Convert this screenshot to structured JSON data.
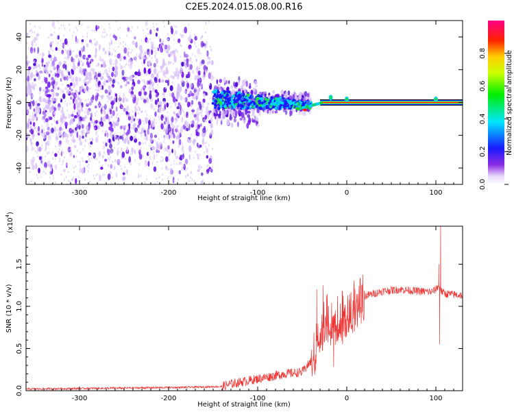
{
  "figure_title": "C2E5.2024.015.08.00.R16",
  "colors": {
    "purple_hi": "#6a0fe6",
    "purple_lo": "#d9c2f7",
    "snr_line": "#ee3333",
    "axis": "#000000"
  },
  "chart_data": [
    {
      "type": "heatmap",
      "title": "",
      "xlabel": "Height of straight line (km)",
      "ylabel": "Frequency (Hz)",
      "xlim": [
        -360,
        130
      ],
      "ylim": [
        -50,
        50
      ],
      "xticks": [
        -300,
        -200,
        -100,
        0,
        100
      ],
      "yticks": [
        -40,
        -20,
        0,
        20,
        40
      ],
      "colorbar": {
        "label": "Normalized spectral amplitude",
        "range": [
          0,
          1
        ],
        "ticks": [
          "0.0",
          "0.2",
          "0.4",
          "0.6",
          "0.8"
        ],
        "tick_values": [
          0,
          0.2,
          0.4,
          0.6,
          0.8
        ],
        "colormap": "rainbow (white-violet-blue-cyan-green-yellow-red-magenta)"
      },
      "bands": [
        {
          "x_start": -360,
          "x_end": -150,
          "freq_spread": 50,
          "amplitude": 0.12
        },
        {
          "x_start": -150,
          "x_end": -100,
          "freq_spread": 15,
          "amplitude": 0.2
        },
        {
          "x_start": -100,
          "x_end": -40,
          "freq_spread": 6,
          "amplitude": 0.35
        },
        {
          "x_start": -40,
          "x_end": 130,
          "freq_spread": 1,
          "amplitude": 0.95
        }
      ]
    },
    {
      "type": "line",
      "title": "",
      "xlabel": "Height of straight line (km)",
      "ylabel": "SNR (10 * v/v)",
      "y_multiplier": "(x10",
      "y_multiplier_exp": "4",
      "y_multiplier_close": ")",
      "xlim": [
        -360,
        130
      ],
      "ylim": [
        0,
        1.95
      ],
      "xticks": [
        -300,
        -200,
        -100,
        0,
        100
      ],
      "yticks": [
        "0.0",
        "0.5",
        "1.0",
        "1.5"
      ],
      "ytick_values": [
        0,
        0.5,
        1.0,
        1.5
      ],
      "envelope": [
        [
          -360,
          0.02
        ],
        [
          -260,
          0.03
        ],
        [
          -180,
          0.04
        ],
        [
          -140,
          0.05
        ],
        [
          -130,
          0.08
        ],
        [
          -110,
          0.12
        ],
        [
          -90,
          0.16
        ],
        [
          -70,
          0.2
        ],
        [
          -50,
          0.22
        ],
        [
          -40,
          0.35
        ],
        [
          -35,
          0.55
        ],
        [
          -30,
          0.75
        ],
        [
          -25,
          0.85
        ],
        [
          -20,
          0.88
        ],
        [
          -10,
          0.9
        ],
        [
          0,
          0.95
        ],
        [
          10,
          1.05
        ],
        [
          20,
          1.12
        ],
        [
          40,
          1.18
        ],
        [
          60,
          1.2
        ],
        [
          80,
          1.18
        ],
        [
          95,
          1.17
        ],
        [
          100,
          1.2
        ],
        [
          103,
          1.25
        ],
        [
          106,
          1.18
        ],
        [
          110,
          1.15
        ],
        [
          130,
          1.13
        ]
      ],
      "spikes": [
        [
          105,
          1.95
        ],
        [
          103,
          1.5
        ],
        [
          104,
          0.55
        ],
        [
          -34,
          1.2
        ],
        [
          -27,
          1.25
        ],
        [
          -15,
          0.28
        ],
        [
          -5,
          0.55
        ]
      ]
    }
  ]
}
